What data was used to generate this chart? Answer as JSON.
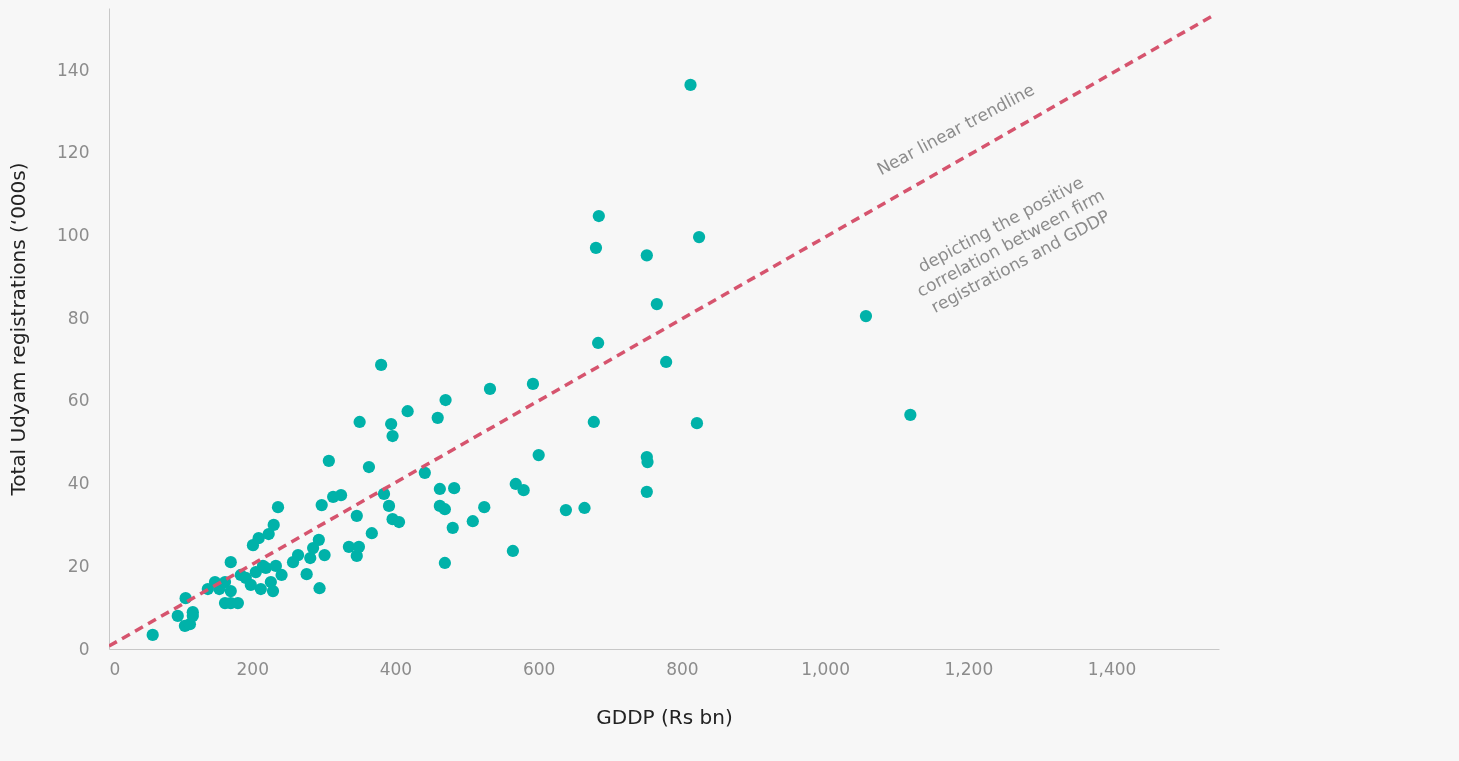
{
  "chart_data": {
    "type": "scatter",
    "xlabel": "GDDP (Rs bn)",
    "ylabel": "Total Udyam registrations (‘000s)",
    "xlim": [
      0,
      1550
    ],
    "ylim": [
      0,
      155
    ],
    "xticks": [
      0,
      200,
      400,
      600,
      800,
      {
        "value": 1000,
        "label": "1,000"
      },
      {
        "value": 1200,
        "label": "1,200"
      },
      {
        "value": 1400,
        "label": "1,400"
      }
    ],
    "yticks": [
      0,
      20,
      40,
      60,
      80,
      100,
      120,
      140
    ],
    "grid": false,
    "marker": "circle",
    "series": [
      {
        "color": "#00b2a9",
        "x": [
          61,
          96,
          107,
          117,
          106,
          113,
          117,
          138,
          148,
          154,
          162,
          162,
          170,
          170,
          170,
          180,
          184,
          191,
          198,
          201,
          209,
          205,
          212,
          215,
          219,
          223,
          226,
          229,
          230,
          236,
          233,
          241,
          257,
          264,
          276,
          281,
          285,
          293,
          294,
          297,
          301,
          307,
          313,
          324,
          335,
          346,
          349,
          346,
          350,
          363,
          367,
          380,
          384,
          391,
          394,
          396,
          396,
          405,
          417,
          441,
          459,
          462,
          462,
          469,
          470,
          469,
          482,
          480,
          508,
          524,
          532,
          568,
          579,
          564,
          592,
          600,
          638,
          664,
          677,
          680,
          684,
          683,
          751,
          751,
          752,
          751,
          765,
          778,
          812,
          821,
          824,
          1057,
          1119
        ],
        "values": [
          3.4,
          8.0,
          12.3,
          8.9,
          5.6,
          6.0,
          8.0,
          14.5,
          16.2,
          14.5,
          16.2,
          11.1,
          11.1,
          21.0,
          14.0,
          11.1,
          17.9,
          17.2,
          15.5,
          25.1,
          26.8,
          18.6,
          14.5,
          20.1,
          19.6,
          27.8,
          16.2,
          14.0,
          30.0,
          34.3,
          20.1,
          17.9,
          21.0,
          22.7,
          18.1,
          22.0,
          24.4,
          26.4,
          14.7,
          34.8,
          22.7,
          45.5,
          36.8,
          37.2,
          24.7,
          22.5,
          24.7,
          32.2,
          54.9,
          44.0,
          28.0,
          68.7,
          37.5,
          34.6,
          54.4,
          51.5,
          31.4,
          30.7,
          57.5,
          42.6,
          55.9,
          38.7,
          34.6,
          33.8,
          60.2,
          20.8,
          38.9,
          29.3,
          30.9,
          34.3,
          62.9,
          39.9,
          38.4,
          23.7,
          64.1,
          46.9,
          33.6,
          34.1,
          54.9,
          97.0,
          104.7,
          74.0,
          95.2,
          46.4,
          45.2,
          38.0,
          83.4,
          69.4,
          136.4,
          54.6,
          99.6,
          80.5,
          56.6
        ]
      },
      {
        "type": "line",
        "color": "#d6546e",
        "line_style": "dashed",
        "marker": "none",
        "x": [
          0,
          1545
        ],
        "values": [
          0.7,
          153.5
        ]
      }
    ],
    "annotations": [
      "Near linear trendline",
      "depicting the positive\ncorrelation between firm\nregistrations and GDDP"
    ]
  }
}
